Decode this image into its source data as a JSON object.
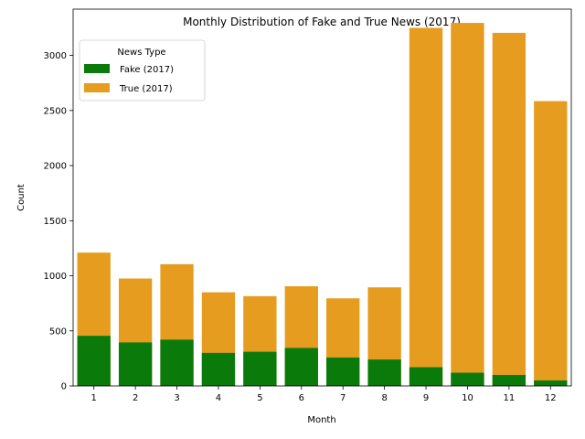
{
  "chart_data": {
    "type": "bar",
    "title": "Monthly Distribution of Fake and True News (2017)",
    "xlabel": "Month",
    "ylabel": "Count",
    "categories": [
      "1",
      "2",
      "3",
      "4",
      "5",
      "6",
      "7",
      "8",
      "9",
      "10",
      "11",
      "12"
    ],
    "ylim": [
      0,
      3420
    ],
    "yticks": [
      0,
      500,
      1000,
      1500,
      2000,
      2500,
      3000
    ],
    "legend": {
      "title": "News Type",
      "position": "top-left"
    },
    "series": [
      {
        "name": "True (2017)",
        "color": "#e59c1f",
        "values": [
          1210,
          975,
          1105,
          850,
          815,
          905,
          795,
          895,
          3250,
          3295,
          3205,
          2585
        ]
      },
      {
        "name": "Fake (2017)",
        "color": "#0a7a0a",
        "values": [
          455,
          395,
          420,
          300,
          310,
          345,
          258,
          240,
          170,
          120,
          100,
          50
        ]
      }
    ]
  }
}
